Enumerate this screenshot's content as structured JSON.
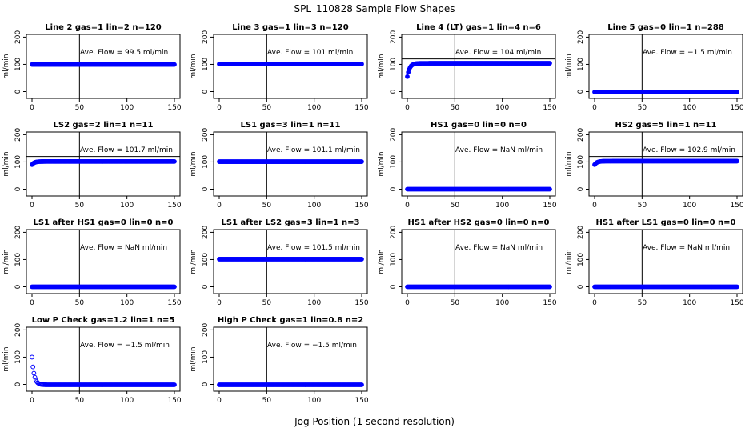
{
  "figure": {
    "title": "SPL_110828  Sample Flow Shapes",
    "xlabel": "Jog Position (1 second resolution)",
    "point_color": "#0000ff"
  },
  "chart_data": [
    {
      "type": "scatter",
      "title": "Line 2 gas=1 lin=2 n=120",
      "ylabel": "ml/min",
      "annotation": "Ave. Flow =  99.5  ml/min",
      "xlim": [
        0,
        150
      ],
      "ylim": [
        -25,
        210
      ],
      "xticks": [
        0,
        50,
        100,
        150
      ],
      "yticks": [
        0,
        100,
        200
      ],
      "vline": 50,
      "hline": null,
      "shape": {
        "steady": 99.5
      }
    },
    {
      "type": "scatter",
      "title": "Line 3 gas=1 lin=3 n=120",
      "ylabel": "ml/min",
      "annotation": "Ave. Flow =  101  ml/min",
      "xlim": [
        0,
        150
      ],
      "ylim": [
        -25,
        210
      ],
      "xticks": [
        0,
        50,
        100,
        150
      ],
      "yticks": [
        0,
        100,
        200
      ],
      "vline": 50,
      "hline": null,
      "shape": {
        "steady": 101
      }
    },
    {
      "type": "scatter",
      "title": "Line 4 (LT) gas=1 lin=4 n=6",
      "ylabel": "ml/min",
      "annotation": "Ave. Flow =  104  ml/min",
      "xlim": [
        0,
        150
      ],
      "ylim": [
        -25,
        210
      ],
      "xticks": [
        0,
        50,
        100,
        150
      ],
      "yticks": [
        0,
        100,
        200
      ],
      "vline": 50,
      "hline": 120,
      "shape": {
        "steady": 104,
        "start": 55,
        "rise": "up"
      }
    },
    {
      "type": "scatter",
      "title": "Line 5 gas=0 lin=1 n=288",
      "ylabel": "ml/min",
      "annotation": "Ave. Flow =  −1.5  ml/min",
      "xlim": [
        0,
        150
      ],
      "ylim": [
        -25,
        210
      ],
      "xticks": [
        0,
        50,
        100,
        150
      ],
      "yticks": [
        0,
        100,
        200
      ],
      "vline": 50,
      "hline": null,
      "shape": {
        "steady": -1.5
      }
    },
    {
      "type": "scatter",
      "title": "LS2 gas=2 lin=1 n=11",
      "ylabel": "ml/min",
      "annotation": "Ave. Flow =  101.7  ml/min",
      "xlim": [
        0,
        150
      ],
      "ylim": [
        -25,
        210
      ],
      "xticks": [
        0,
        50,
        100,
        150
      ],
      "yticks": [
        0,
        100,
        200
      ],
      "vline": 50,
      "hline": 120,
      "shape": {
        "steady": 101.7,
        "start": 90,
        "rise": "up"
      }
    },
    {
      "type": "scatter",
      "title": "LS1 gas=3 lin=1 n=11",
      "ylabel": "ml/min",
      "annotation": "Ave. Flow =  101.1  ml/min",
      "xlim": [
        0,
        150
      ],
      "ylim": [
        -25,
        210
      ],
      "xticks": [
        0,
        50,
        100,
        150
      ],
      "yticks": [
        0,
        100,
        200
      ],
      "vline": 50,
      "hline": null,
      "shape": {
        "steady": 101.1
      }
    },
    {
      "type": "scatter",
      "title": "HS1 gas=0 lin=0 n=0",
      "ylabel": "ml/min",
      "annotation": "Ave. Flow =  NaN  ml/min",
      "xlim": [
        0,
        150
      ],
      "ylim": [
        -25,
        210
      ],
      "xticks": [
        0,
        50,
        100,
        150
      ],
      "yticks": [
        0,
        100,
        200
      ],
      "vline": 50,
      "hline": null,
      "shape": {
        "steady": 0
      }
    },
    {
      "type": "scatter",
      "title": "HS2 gas=5 lin=1 n=11",
      "ylabel": "ml/min",
      "annotation": "Ave. Flow =  102.9  ml/min",
      "xlim": [
        0,
        150
      ],
      "ylim": [
        -25,
        210
      ],
      "xticks": [
        0,
        50,
        100,
        150
      ],
      "yticks": [
        0,
        100,
        200
      ],
      "vline": 50,
      "hline": 120,
      "shape": {
        "steady": 102.9,
        "start": 90,
        "rise": "up"
      }
    },
    {
      "type": "scatter",
      "title": "LS1 after HS1 gas=0 lin=0 n=0",
      "ylabel": "ml/min",
      "annotation": "Ave. Flow =  NaN  ml/min",
      "xlim": [
        0,
        150
      ],
      "ylim": [
        -25,
        210
      ],
      "xticks": [
        0,
        50,
        100,
        150
      ],
      "yticks": [
        0,
        100,
        200
      ],
      "vline": 50,
      "hline": null,
      "shape": {
        "steady": 0
      }
    },
    {
      "type": "scatter",
      "title": "LS1 after LS2 gas=3 lin=1 n=3",
      "ylabel": "ml/min",
      "annotation": "Ave. Flow =  101.5  ml/min",
      "xlim": [
        0,
        150
      ],
      "ylim": [
        -25,
        210
      ],
      "xticks": [
        0,
        50,
        100,
        150
      ],
      "yticks": [
        0,
        100,
        200
      ],
      "vline": 50,
      "hline": null,
      "shape": {
        "steady": 101.5
      }
    },
    {
      "type": "scatter",
      "title": "HS1 after HS2 gas=0 lin=0 n=0",
      "ylabel": "ml/min",
      "annotation": "Ave. Flow =  NaN  ml/min",
      "xlim": [
        0,
        150
      ],
      "ylim": [
        -25,
        210
      ],
      "xticks": [
        0,
        50,
        100,
        150
      ],
      "yticks": [
        0,
        100,
        200
      ],
      "vline": 50,
      "hline": null,
      "shape": {
        "steady": 0
      }
    },
    {
      "type": "scatter",
      "title": "HS1 after LS1 gas=0 lin=0 n=0",
      "ylabel": "ml/min",
      "annotation": "Ave. Flow =  NaN  ml/min",
      "xlim": [
        0,
        150
      ],
      "ylim": [
        -25,
        210
      ],
      "xticks": [
        0,
        50,
        100,
        150
      ],
      "yticks": [
        0,
        100,
        200
      ],
      "vline": 50,
      "hline": null,
      "shape": {
        "steady": 0
      }
    },
    {
      "type": "scatter",
      "title": "Low P Check gas=1.2 lin=1 n=5",
      "ylabel": "ml/min",
      "annotation": "Ave. Flow =  −1.5  ml/min",
      "xlim": [
        0,
        150
      ],
      "ylim": [
        -25,
        210
      ],
      "xticks": [
        0,
        50,
        100,
        150
      ],
      "yticks": [
        0,
        100,
        200
      ],
      "vline": 50,
      "hline": null,
      "shape": {
        "steady": -1.5,
        "start": 100,
        "rise": "down"
      }
    },
    {
      "type": "scatter",
      "title": "High P Check gas=1 lin=0.8 n=2",
      "ylabel": "ml/min",
      "annotation": "Ave. Flow =  −1.5  ml/min",
      "xlim": [
        0,
        150
      ],
      "ylim": [
        -25,
        210
      ],
      "xticks": [
        0,
        50,
        100,
        150
      ],
      "yticks": [
        0,
        100,
        200
      ],
      "vline": 50,
      "hline": null,
      "shape": {
        "steady": -1.5
      }
    }
  ]
}
